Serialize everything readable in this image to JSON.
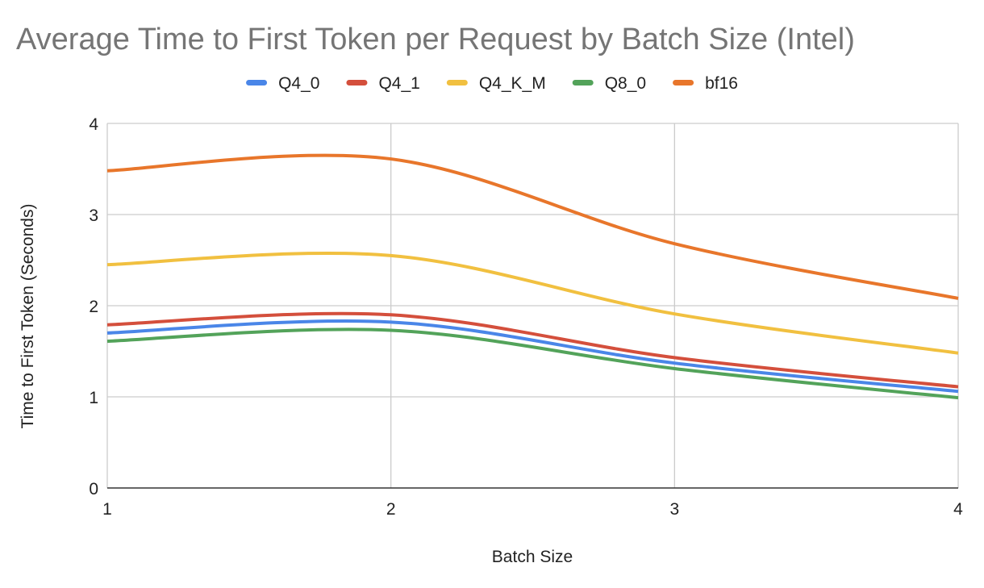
{
  "chart_data": {
    "type": "line",
    "title": "Average Time to First Token per Request by Batch Size (Intel)",
    "xlabel": "Batch Size",
    "ylabel": "Time to First Token (Seconds)",
    "x": [
      1,
      2,
      3,
      4
    ],
    "x_ticks": [
      "1",
      "2",
      "3",
      "4"
    ],
    "xlim": [
      1,
      4
    ],
    "ylim": [
      0,
      4
    ],
    "y_ticks": [
      "0",
      "1",
      "2",
      "3",
      "4"
    ],
    "grid": true,
    "legend_position": "top",
    "smooth": true,
    "series": [
      {
        "name": "Q4_0",
        "color": "#4a86e8",
        "values": [
          1.7,
          1.82,
          1.37,
          1.06
        ]
      },
      {
        "name": "Q4_1",
        "color": "#d44f3c",
        "values": [
          1.79,
          1.9,
          1.43,
          1.11
        ]
      },
      {
        "name": "Q4_K_M",
        "color": "#f1c040",
        "values": [
          2.45,
          2.55,
          1.91,
          1.48
        ]
      },
      {
        "name": "Q8_0",
        "color": "#53a35a",
        "values": [
          1.61,
          1.73,
          1.31,
          0.99
        ]
      },
      {
        "name": "bf16",
        "color": "#e8762b",
        "values": [
          3.48,
          3.61,
          2.68,
          2.08
        ]
      }
    ]
  }
}
